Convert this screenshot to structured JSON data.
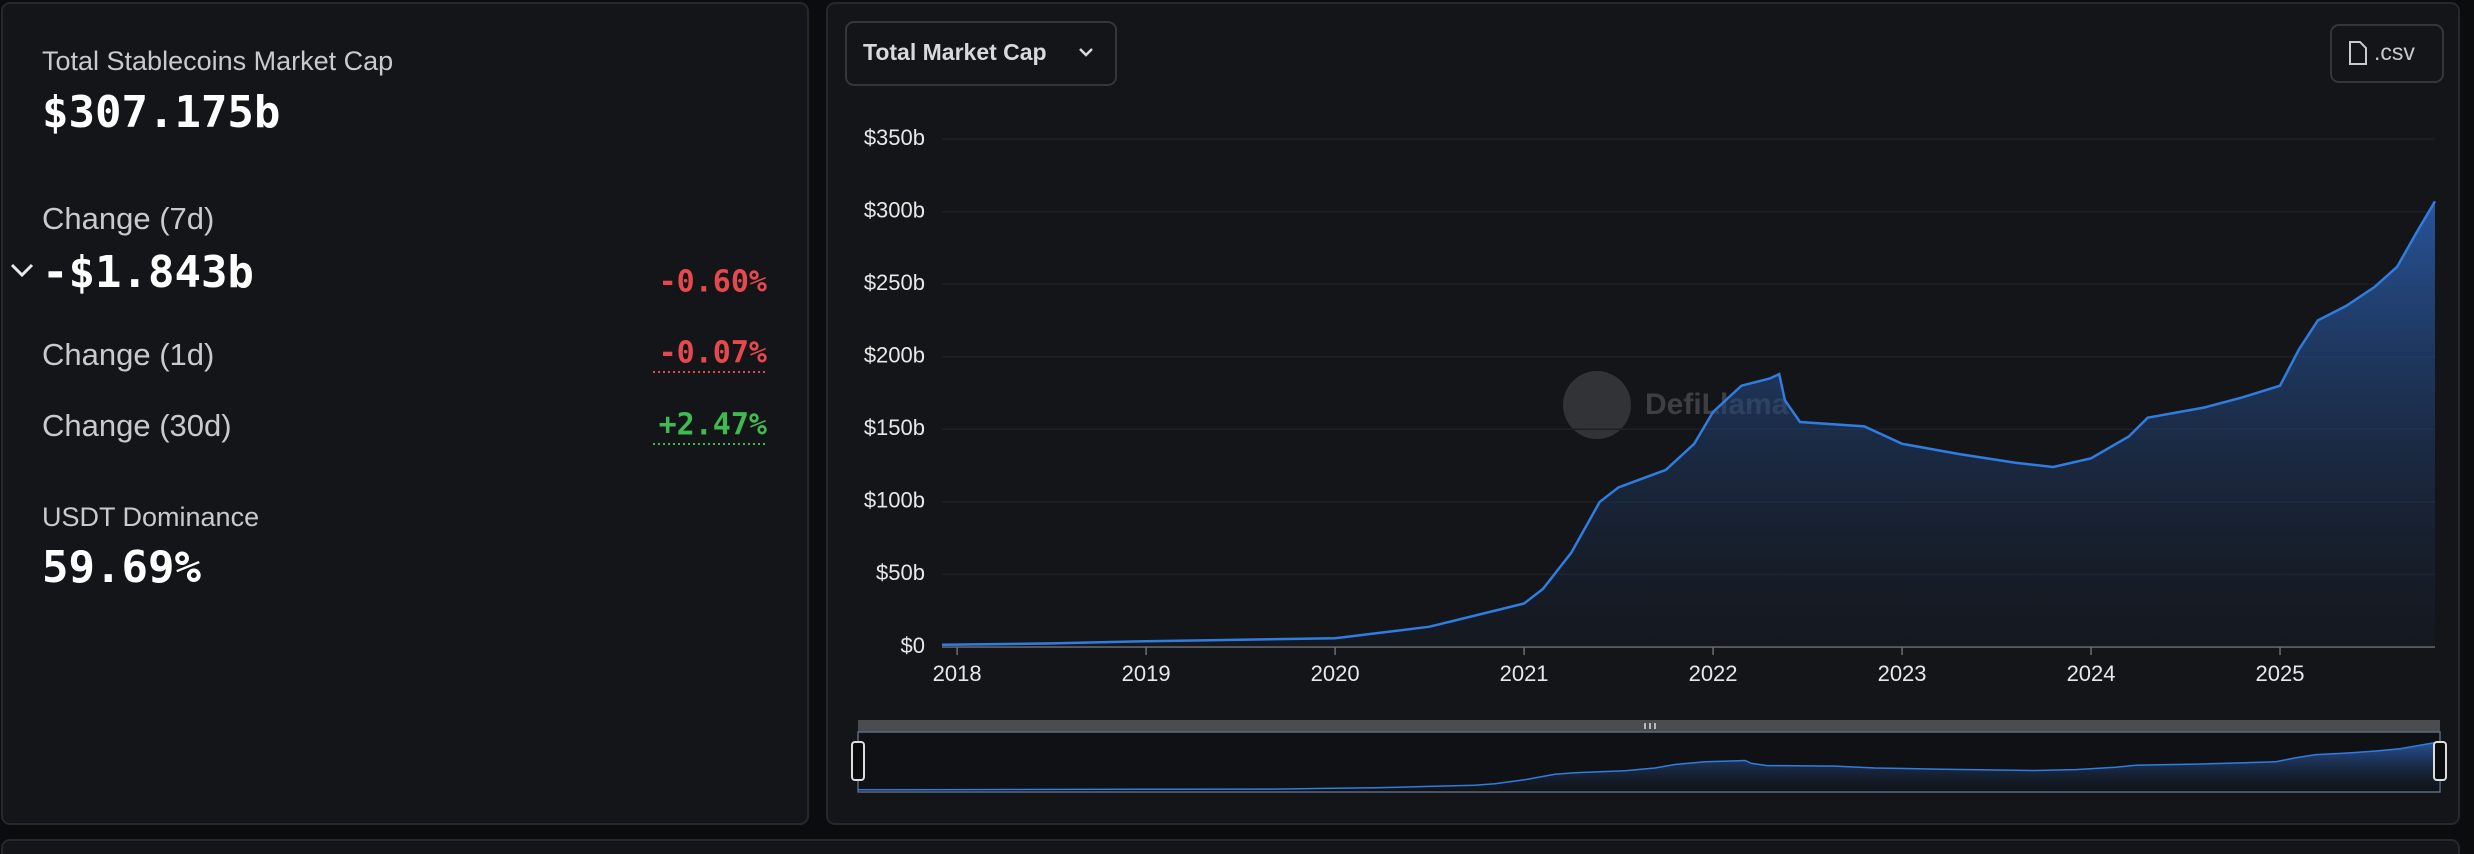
{
  "summary": {
    "market_cap": {
      "label": "Total Stablecoins Market Cap",
      "value": "$307.175b"
    },
    "change_7d": {
      "label": "Change (7d)",
      "value": "-$1.843b",
      "percent": "-0.60%"
    },
    "change_1d": {
      "label": "Change (1d)",
      "percent": "-0.07%"
    },
    "change_30d": {
      "label": "Change (30d)",
      "percent": "+2.47%"
    },
    "dominance": {
      "label": "USDT Dominance",
      "value": "59.69%"
    }
  },
  "controls": {
    "dropdown": "Total Market Cap",
    "csv": ".csv",
    "watermark": "DefiLlama"
  },
  "chart_data": {
    "type": "area",
    "x": [
      2017.92,
      2018.5,
      2019.0,
      2019.5,
      2020.0,
      2020.25,
      2020.5,
      2020.75,
      2021.0,
      2021.1,
      2021.25,
      2021.4,
      2021.5,
      2021.75,
      2021.9,
      2022.0,
      2022.15,
      2022.3,
      2022.35,
      2022.38,
      2022.46,
      2022.8,
      2023.0,
      2023.3,
      2023.6,
      2023.8,
      2024.0,
      2024.2,
      2024.3,
      2024.6,
      2024.8,
      2025.0,
      2025.1,
      2025.2,
      2025.35,
      2025.5,
      2025.62,
      2025.72,
      2025.82
    ],
    "values": [
      1.5,
      2.5,
      4,
      5,
      6,
      10,
      14,
      22,
      30,
      40,
      65,
      100,
      110,
      122,
      140,
      162,
      180,
      185,
      188,
      170,
      155,
      152,
      140,
      133,
      127,
      124,
      130,
      145,
      158,
      165,
      172,
      180,
      205,
      225,
      235,
      248,
      262,
      285,
      307
    ],
    "color": "#2f7de1",
    "xlim": [
      2017.92,
      2025.82
    ],
    "ylim": [
      0,
      350
    ],
    "xticks": [
      2018,
      2019,
      2020,
      2021,
      2022,
      2023,
      2024,
      2025
    ],
    "yticks": [
      {
        "value": 0,
        "label": "$0"
      },
      {
        "value": 50,
        "label": "$50b"
      },
      {
        "value": 100,
        "label": "$100b"
      },
      {
        "value": 150,
        "label": "$150b"
      },
      {
        "value": 200,
        "label": "$200b"
      },
      {
        "value": 250,
        "label": "$250b"
      },
      {
        "value": 300,
        "label": "$300b"
      },
      {
        "value": 350,
        "label": "$350b"
      }
    ],
    "grid": true
  }
}
